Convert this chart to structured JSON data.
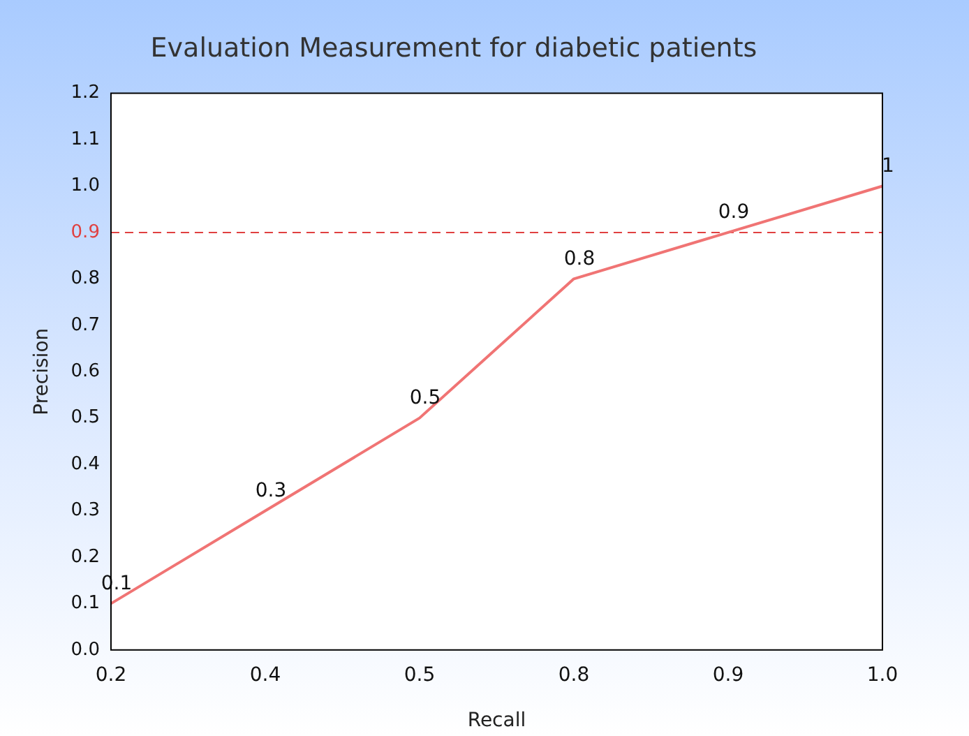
{
  "chart_data": {
    "type": "line",
    "title": "Evaluation Measurement for diabetic patients",
    "xlabel": "Recall",
    "ylabel": "Precision",
    "categories": [
      "0.2",
      "0.4",
      "0.5",
      "0.8",
      "0.9",
      "1.0"
    ],
    "series": [
      {
        "color": "#f07474",
        "values": [
          0.1,
          0.3,
          0.5,
          0.8,
          0.9,
          1
        ]
      }
    ],
    "ylim": [
      0,
      1.2
    ],
    "yticks": [
      {
        "value": 0,
        "label": "0.0"
      },
      0.1,
      0.2,
      0.3,
      0.4,
      0.5,
      0.6,
      0.7,
      0.8,
      0.9,
      {
        "value": 1,
        "label": "1.0"
      },
      1.1,
      1.2
    ],
    "ref_lines": [
      {
        "axis": "y",
        "value": 0.9,
        "color": "#e04040",
        "line_style": "dashed"
      }
    ],
    "data_labels": true,
    "grid": false,
    "legend": false,
    "marker": "none",
    "line_style": "solid"
  }
}
